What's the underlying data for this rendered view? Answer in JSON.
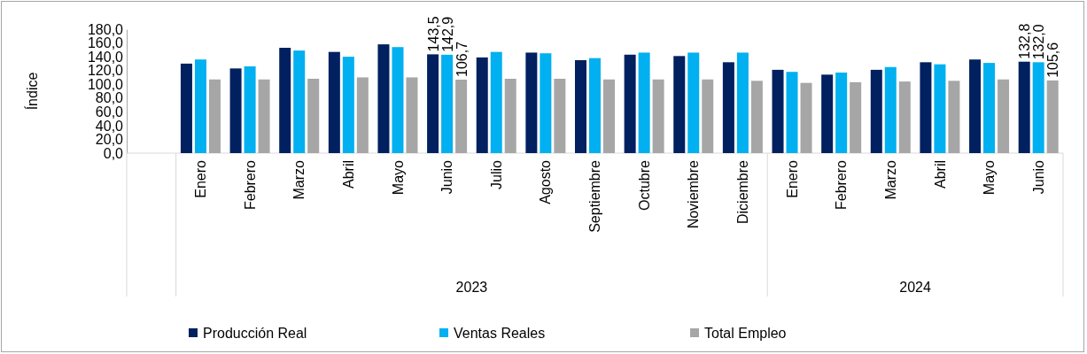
{
  "chart_data": {
    "type": "bar",
    "ylabel": "Índice",
    "categories": [
      null,
      "Enero",
      "Febrero",
      "Marzo",
      "Abril",
      "Mayo",
      "Junio",
      "Julio",
      "Agosto",
      "Septiembre",
      "Octubre",
      "Noviembre",
      "Diciembre",
      "Enero",
      "Febrero",
      "Marzo",
      "Abril",
      "Mayo",
      "Junio"
    ],
    "series": [
      {
        "name": "Producción Real",
        "color": "#002060",
        "values": [
          null,
          130,
          123,
          153,
          147,
          158,
          143.5,
          139,
          146,
          135,
          143,
          141,
          132,
          121,
          114,
          121,
          132,
          136,
          132.8
        ],
        "value_labels": [
          null,
          null,
          null,
          null,
          null,
          null,
          "143,5",
          null,
          null,
          null,
          null,
          null,
          null,
          null,
          null,
          null,
          null,
          null,
          "132,8"
        ]
      },
      {
        "name": "Ventas Reales",
        "color": "#00b0f0",
        "values": [
          null,
          136,
          126,
          149,
          140,
          154,
          142.9,
          147,
          145,
          138,
          146,
          146,
          146,
          118,
          117,
          125,
          129,
          131,
          132.0
        ],
        "value_labels": [
          null,
          null,
          null,
          null,
          null,
          null,
          "142,9",
          null,
          null,
          null,
          null,
          null,
          null,
          null,
          null,
          null,
          null,
          null,
          "132,0"
        ]
      },
      {
        "name": "Total Empleo",
        "color": "#a6a6a6",
        "values": [
          null,
          107,
          107,
          108,
          110,
          110,
          106.7,
          108,
          108,
          107,
          107,
          107,
          105,
          102,
          103,
          104,
          105,
          107,
          105.6
        ],
        "value_labels": [
          null,
          null,
          null,
          null,
          null,
          null,
          "106,7",
          null,
          null,
          null,
          null,
          null,
          null,
          null,
          null,
          null,
          null,
          null,
          "105,6"
        ]
      }
    ],
    "ylim": [
      0,
      180
    ],
    "yticks": [
      {
        "value": 0,
        "label": "0,0"
      },
      {
        "value": 20,
        "label": "20,0"
      },
      {
        "value": 40,
        "label": "40,0"
      },
      {
        "value": 60,
        "label": "60,0"
      },
      {
        "value": 80,
        "label": "80,0"
      },
      {
        "value": 100,
        "label": "100,0"
      },
      {
        "value": 120,
        "label": "120,0"
      },
      {
        "value": 140,
        "label": "140,0"
      },
      {
        "value": 160,
        "label": "160,0"
      },
      {
        "value": 180,
        "label": "180,0"
      }
    ],
    "annotations": [
      "2023",
      "2024"
    ],
    "grid": false,
    "legend": "bottom"
  }
}
